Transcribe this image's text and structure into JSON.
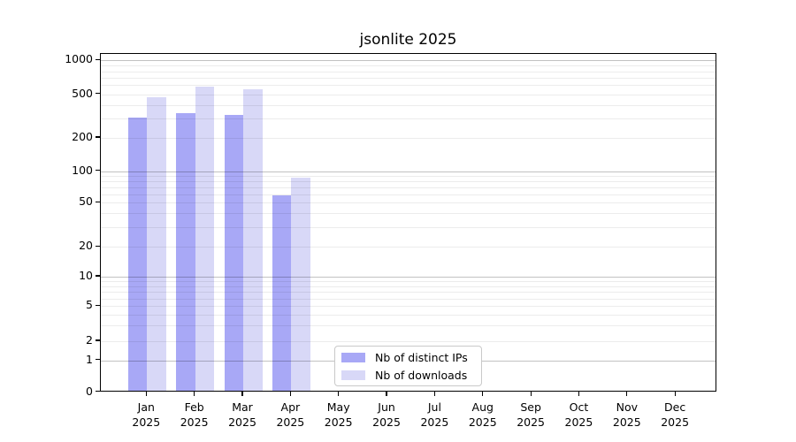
{
  "chart_data": {
    "type": "bar",
    "title": "jsonlite 2025",
    "categories": [
      "Jan",
      "Feb",
      "Mar",
      "Apr",
      "May",
      "Jun",
      "Jul",
      "Aug",
      "Sep",
      "Oct",
      "Nov",
      "Dec"
    ],
    "x_year_label": "2025",
    "series": [
      {
        "name": "Nb of distinct IPs",
        "color": "#a8a8f6",
        "values": [
          295,
          325,
          310,
          56,
          null,
          null,
          null,
          null,
          null,
          null,
          null,
          null
        ]
      },
      {
        "name": "Nb of downloads",
        "color": "#d8d8f7",
        "values": [
          452,
          565,
          535,
          84,
          null,
          null,
          null,
          null,
          null,
          null,
          null,
          null
        ]
      }
    ],
    "xlabel": "",
    "ylabel": "",
    "yscale": "symlog",
    "y_ticks": [
      0,
      1,
      2,
      5,
      10,
      20,
      50,
      100,
      200,
      500,
      1000
    ],
    "ylim": [
      0,
      1200
    ],
    "grid": "horizontal major and log-minor gridlines",
    "legend_position": "lower center"
  }
}
